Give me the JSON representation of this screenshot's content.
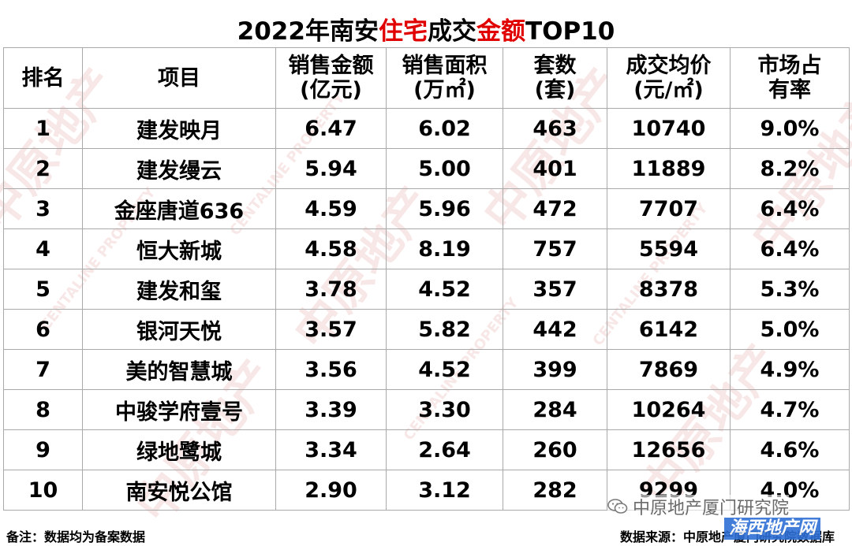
{
  "title": {
    "part1": "2022年南安",
    "part2": "住宅",
    "part3": "成交",
    "part4": "金额",
    "part5": "TOP10",
    "accent_color": "#e00000"
  },
  "table": {
    "headers": [
      {
        "line1": "排名",
        "line2": ""
      },
      {
        "line1": "项目",
        "line2": ""
      },
      {
        "line1": "销售金额",
        "line2": "(亿元)"
      },
      {
        "line1": "销售面积",
        "line2": "(万㎡)"
      },
      {
        "line1": "套数",
        "line2": "(套)"
      },
      {
        "line1": "成交均价",
        "line2": "(元/㎡)"
      },
      {
        "line1": "市场占",
        "line2": "有率"
      }
    ],
    "rows": [
      {
        "rank": "1",
        "project": "建发映月",
        "amount": "6.47",
        "area": "6.02",
        "units": "463",
        "price": "10740",
        "share": "9.0%"
      },
      {
        "rank": "2",
        "project": "建发缦云",
        "amount": "5.94",
        "area": "5.00",
        "units": "401",
        "price": "11889",
        "share": "8.2%"
      },
      {
        "rank": "3",
        "project": "金座唐道636",
        "amount": "4.59",
        "area": "5.96",
        "units": "472",
        "price": "7707",
        "share": "6.4%"
      },
      {
        "rank": "4",
        "project": "恒大新城",
        "amount": "4.58",
        "area": "8.19",
        "units": "757",
        "price": "5594",
        "share": "6.4%"
      },
      {
        "rank": "5",
        "project": "建发和玺",
        "amount": "3.78",
        "area": "4.52",
        "units": "357",
        "price": "8378",
        "share": "5.3%"
      },
      {
        "rank": "6",
        "project": "银河天悦",
        "amount": "3.57",
        "area": "5.82",
        "units": "442",
        "price": "6142",
        "share": "5.0%"
      },
      {
        "rank": "7",
        "project": "美的智慧城",
        "amount": "3.56",
        "area": "4.52",
        "units": "399",
        "price": "7869",
        "share": "4.9%"
      },
      {
        "rank": "8",
        "project": "中骏学府壹号",
        "amount": "3.39",
        "area": "3.30",
        "units": "284",
        "price": "10264",
        "share": "4.7%"
      },
      {
        "rank": "9",
        "project": "绿地鹭城",
        "amount": "3.34",
        "area": "2.64",
        "units": "260",
        "price": "12656",
        "share": "4.6%"
      },
      {
        "rank": "10",
        "project": "南安悦公馆",
        "amount": "2.90",
        "area": "3.12",
        "units": "282",
        "price": "9299",
        "share": "4.0%"
      }
    ]
  },
  "footer": {
    "note": "备注：数据均为备案数据",
    "source": "数据来源：中原地产厦门研究院数据库"
  },
  "wechat": {
    "label": "中原地产厦门研究院",
    "icon": "wechat-icon"
  },
  "stamp": {
    "label": "海西地产网"
  },
  "watermark": {
    "text_cn": "中原地产",
    "text_en": "CENTALINE PROPERTY",
    "color": "#e8c7c7"
  }
}
